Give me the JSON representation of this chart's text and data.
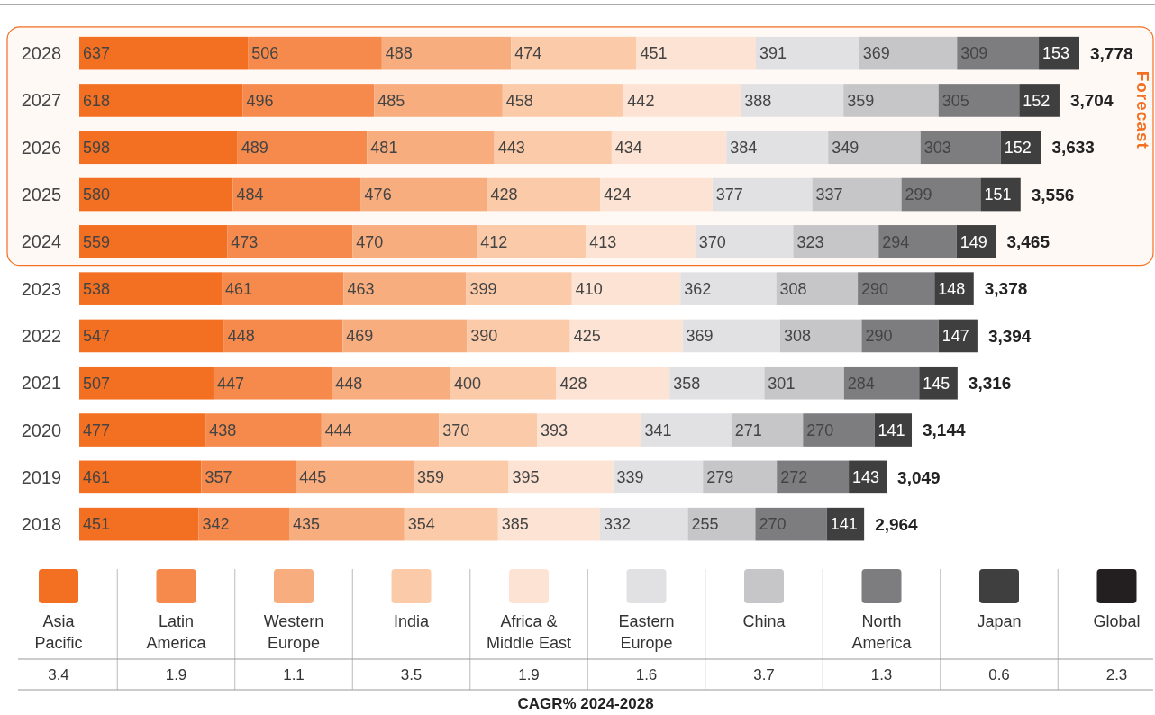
{
  "chart_data": {
    "type": "bar",
    "orientation": "horizontal",
    "stacked": true,
    "data_labels": true,
    "legend": "bottom",
    "categories": [
      "2028",
      "2027",
      "2026",
      "2025",
      "2024",
      "2023",
      "2022",
      "2021",
      "2020",
      "2019",
      "2018"
    ],
    "series": [
      {
        "name": "Asia Pacific",
        "color": "#f36f21",
        "values": [
          637,
          618,
          598,
          580,
          559,
          538,
          547,
          507,
          477,
          461,
          451
        ]
      },
      {
        "name": "Latin America",
        "color": "#f58a4c",
        "values": [
          506,
          496,
          489,
          484,
          473,
          461,
          448,
          447,
          438,
          357,
          342
        ]
      },
      {
        "name": "Western Europe",
        "color": "#f8ad7f",
        "values": [
          488,
          485,
          481,
          476,
          470,
          463,
          469,
          448,
          444,
          445,
          435
        ]
      },
      {
        "name": "India",
        "color": "#fbcaa8",
        "values": [
          474,
          458,
          443,
          428,
          412,
          399,
          390,
          400,
          370,
          359,
          354
        ]
      },
      {
        "name": "Africa & Middle East",
        "color": "#fde3d3",
        "values": [
          451,
          442,
          434,
          424,
          413,
          410,
          425,
          428,
          393,
          395,
          385
        ]
      },
      {
        "name": "Eastern Europe",
        "color": "#e1e1e3",
        "values": [
          391,
          388,
          384,
          377,
          370,
          362,
          369,
          358,
          341,
          339,
          332
        ]
      },
      {
        "name": "China",
        "color": "#c6c6c8",
        "values": [
          369,
          359,
          349,
          337,
          323,
          308,
          308,
          301,
          271,
          279,
          255
        ]
      },
      {
        "name": "North America",
        "color": "#7d7d80",
        "values": [
          309,
          305,
          303,
          299,
          294,
          290,
          290,
          284,
          270,
          272,
          270
        ]
      },
      {
        "name": "Japan",
        "color": "#3f3f40",
        "values": [
          153,
          152,
          152,
          151,
          149,
          148,
          147,
          145,
          141,
          143,
          141
        ]
      },
      {
        "name": "Global",
        "color": "#231f20",
        "values": [
          null,
          null,
          null,
          null,
          null,
          null,
          null,
          null,
          null,
          null,
          null
        ]
      }
    ],
    "totals": [
      "3,778",
      "3,704",
      "3,633",
      "3,556",
      "3,465",
      "3,378",
      "3,394",
      "3,316",
      "3,144",
      "3,049",
      "2,964"
    ],
    "bands": [
      {
        "axis": "y",
        "from": "2028",
        "to": "2024",
        "label": "Forecast",
        "color": "#f36f21"
      }
    ],
    "annotations": [
      "3.4",
      "1.9",
      "1.1",
      "3.5",
      "1.9",
      "1.6",
      "3.7",
      "1.3",
      "0.6",
      "2.3",
      "CAGR% 2024-2028"
    ]
  }
}
